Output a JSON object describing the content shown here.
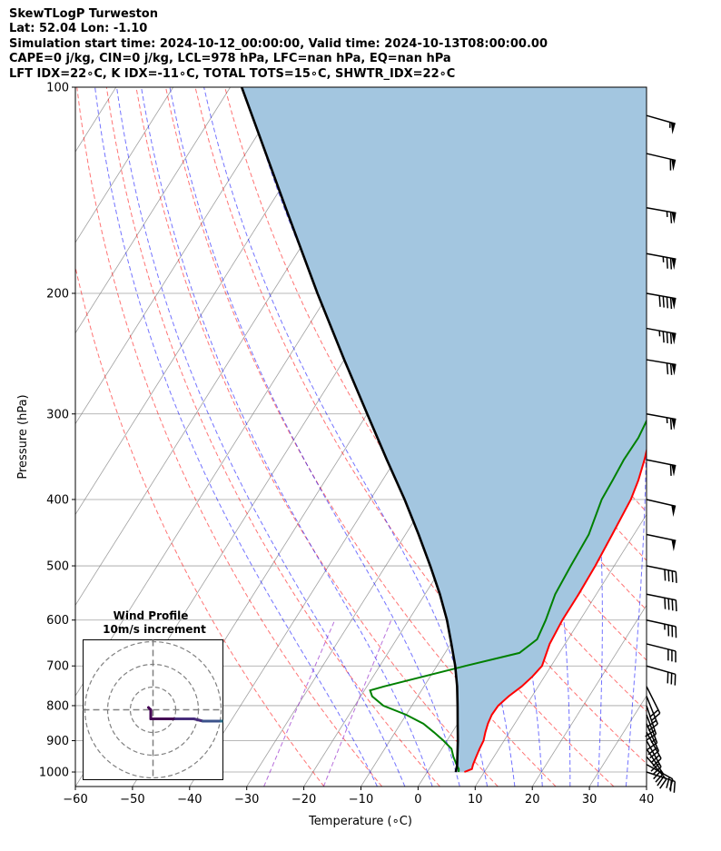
{
  "header": {
    "title": "SkewTLogP Turweston",
    "location": "Lat: 52.04   Lon: -1.10",
    "times": "Simulation start time: 2024-10-12_00:00:00, Valid time: 2024-10-13T08:00:00.00",
    "indices1": "CAPE=0 j/kg, CIN=0 j/kg, LCL=978 hPa, LFC=nan hPa, EQ=nan hPa",
    "indices2": "LFT IDX=22∘C, K IDX=-11∘C, TOTAL TOTS=15∘C, SHWTR_IDX=22∘C"
  },
  "inset": {
    "title": "Wind Profile",
    "subtitle": "10m/s increment"
  },
  "chart_data": {
    "type": "line",
    "title": "SkewTLogP Turweston",
    "xlabel": "Temperature (∘C)",
    "ylabel": "Pressure (hPa)",
    "xlim": [
      -60,
      40
    ],
    "ylim": [
      1050,
      100
    ],
    "y_scale": "log",
    "grid": true,
    "x_ticks": [
      -60,
      -50,
      -40,
      -30,
      -20,
      -10,
      0,
      10,
      20,
      30,
      40
    ],
    "y_ticks": [
      1000,
      900,
      800,
      700,
      600,
      500,
      400,
      300,
      200,
      100
    ],
    "colors": {
      "temperature": "#ff0000",
      "dewpoint": "#008000",
      "parcel": "#000000",
      "fill": "#a3c6e0",
      "dry_adiabats": "#ff0000",
      "moist_adiabats": "#0000ff",
      "isotherms": "#808080",
      "mixing_ratio": "#9932cc"
    },
    "series": [
      {
        "key": "temperature",
        "p": [
          1000,
          990,
          975,
          950,
          925,
          900,
          875,
          850,
          825,
          800,
          775,
          750,
          725,
          700,
          650,
          600,
          550,
          500,
          450,
          400,
          375,
          350,
          325,
          300,
          275,
          250,
          225,
          200,
          190,
          175,
          160,
          150,
          140,
          125,
          110,
          100
        ],
        "t": [
          6.5,
          7.5,
          7.2,
          6.9,
          6.6,
          6.4,
          5.8,
          5.3,
          5.0,
          5.1,
          5.9,
          7.1,
          7.9,
          8.4,
          7.3,
          6.9,
          6.9,
          6.7,
          6.2,
          5.6,
          4.8,
          3.6,
          2.1,
          0.9,
          -0.5,
          -2.5,
          -4.8,
          -7.5,
          -8.6,
          -7.2,
          -5.2,
          -3.8,
          -2.9,
          -1.6,
          -0.7,
          0.0
        ]
      },
      {
        "key": "dewpoint",
        "p": [
          1000,
          990,
          975,
          950,
          925,
          900,
          875,
          850,
          825,
          800,
          775,
          760,
          750,
          700,
          670,
          640,
          600,
          550,
          500,
          450,
          400,
          375,
          350,
          325,
          300,
          275,
          250,
          225,
          200,
          190,
          175,
          160,
          150,
          140,
          125,
          100
        ],
        "t": [
          5.5,
          5.2,
          4.3,
          2.9,
          1.7,
          -0.6,
          -3.2,
          -6.0,
          -10.0,
          -15.0,
          -18.0,
          -19.0,
          -17.0,
          -5.0,
          3.0,
          4.6,
          4.0,
          2.8,
          2.4,
          2.1,
          0.5,
          0.3,
          0.0,
          0.1,
          -0.5,
          -2.5,
          -6.0,
          -8.5,
          -11.0,
          -11.0,
          -9.0,
          -9.0,
          -10.0,
          -12.5,
          -14.0,
          -15.0
        ]
      },
      {
        "key": "parcel",
        "p": [
          1000,
          978,
          950,
          900,
          850,
          800,
          750,
          700,
          650,
          600,
          550,
          500,
          450,
          400,
          350,
          300,
          250,
          200,
          150,
          100
        ],
        "t": [
          5.0,
          4.5,
          3.6,
          1.9,
          0.0,
          -2.0,
          -4.2,
          -6.8,
          -9.9,
          -13.3,
          -17.4,
          -22.2,
          -27.7,
          -34.0,
          -41.5,
          -50.0,
          -60.0,
          -72.0,
          -87.0,
          -108.0
        ]
      }
    ],
    "dry_adiabats_theta_C": [
      -20,
      -10,
      0,
      10,
      20,
      30,
      40,
      50,
      60,
      70,
      80,
      90,
      100,
      110,
      120,
      130,
      140,
      150,
      160,
      170,
      180
    ],
    "moist_adiabats_thetaw_C": [
      -10,
      -5,
      0,
      5,
      10,
      15,
      20,
      25,
      30,
      35
    ],
    "mixing_ratio_gkg": [
      0.4,
      1
    ],
    "wind_barbs": [
      {
        "p": 1000,
        "u": -9,
        "v": 3
      },
      {
        "p": 975,
        "u": -9,
        "v": 5
      },
      {
        "p": 950,
        "u": -7,
        "v": 8
      },
      {
        "p": 925,
        "u": -6,
        "v": 9
      },
      {
        "p": 900,
        "u": -5,
        "v": 9
      },
      {
        "p": 875,
        "u": -5,
        "v": 9
      },
      {
        "p": 850,
        "u": -4,
        "v": 9
      },
      {
        "p": 825,
        "u": -3,
        "v": 8
      },
      {
        "p": 800,
        "u": -3,
        "v": 9
      },
      {
        "p": 775,
        "u": -4,
        "v": 10
      },
      {
        "p": 750,
        "u": -5,
        "v": 10
      },
      {
        "p": 700,
        "u": -14,
        "v": 4
      },
      {
        "p": 650,
        "u": -16,
        "v": 4
      },
      {
        "p": 600,
        "u": -18,
        "v": 4
      },
      {
        "p": 550,
        "u": -20,
        "v": 4
      },
      {
        "p": 500,
        "u": -20,
        "v": 4
      },
      {
        "p": 450,
        "u": -24,
        "v": 5
      },
      {
        "p": 400,
        "u": -26,
        "v": 6
      },
      {
        "p": 350,
        "u": -30,
        "v": 6
      },
      {
        "p": 300,
        "u": -33,
        "v": 6
      },
      {
        "p": 250,
        "u": -36,
        "v": 6
      },
      {
        "p": 225,
        "u": -44,
        "v": 8
      },
      {
        "p": 200,
        "u": -45,
        "v": 8
      },
      {
        "p": 175,
        "u": -38,
        "v": 7
      },
      {
        "p": 150,
        "u": -34,
        "v": 6
      },
      {
        "p": 125,
        "u": -30,
        "v": 7
      },
      {
        "p": 110,
        "u": -28,
        "v": 8
      }
    ],
    "hodograph": {
      "rings_ms": [
        10,
        20,
        30
      ],
      "u": [
        -2,
        -1,
        -1,
        -1,
        1,
        3,
        6,
        10,
        14,
        18,
        22,
        26,
        30,
        34,
        36,
        38,
        39,
        40,
        41,
        42
      ],
      "v": [
        1,
        0,
        -2,
        -4,
        -4,
        -4,
        -4,
        -4,
        -4,
        -4,
        -5,
        -5,
        -5,
        -5,
        -5,
        -5,
        -5,
        -5,
        -4,
        -3
      ]
    }
  }
}
